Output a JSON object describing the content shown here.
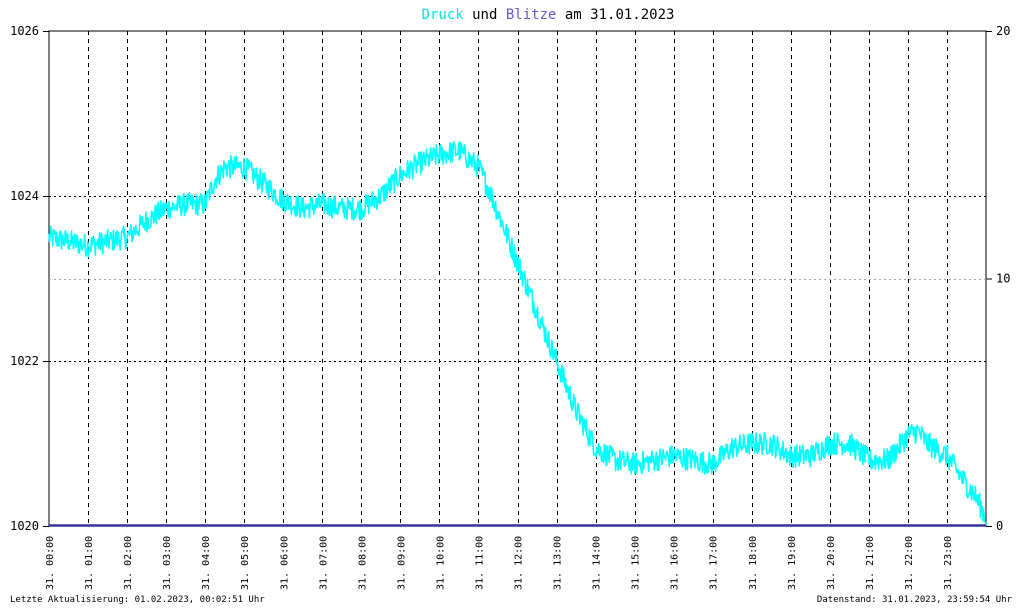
{
  "title": {
    "part1": "Druck",
    "part2": " und ",
    "part3": "Blitze",
    "part4": " am 31.01.2023"
  },
  "footer": {
    "left": "Letzte Aktualisierung: 01.02.2023, 00:02:51 Uhr",
    "right": "Datenstand: 31.01.2023, 23:59:54 Uhr"
  },
  "colors": {
    "pressure": "#00ffff",
    "lightning": "#333399",
    "grid": "#000000",
    "title_druck": "#00e5e5",
    "title_blitze": "#6a5acd",
    "background": "#ffffff"
  },
  "chart_data": {
    "type": "line",
    "x_ticks": [
      "31. 00:00",
      "31. 01:00",
      "31. 02:00",
      "31. 03:00",
      "31. 04:00",
      "31. 05:00",
      "31. 06:00",
      "31. 07:00",
      "31. 08:00",
      "31. 09:00",
      "31. 10:00",
      "31. 11:00",
      "31. 12:00",
      "31. 13:00",
      "31. 14:00",
      "31. 15:00",
      "31. 16:00",
      "31. 17:00",
      "31. 18:00",
      "31. 19:00",
      "31. 20:00",
      "31. 21:00",
      "31. 22:00",
      "31. 23:00"
    ],
    "xlim_hours": [
      0,
      24
    ],
    "y_left": {
      "ylim": [
        1020,
        1026
      ],
      "ticks": [
        1020,
        1022,
        1024,
        1026
      ]
    },
    "y_right": {
      "ylim": [
        0,
        20
      ],
      "ticks": [
        0,
        10,
        20
      ]
    },
    "series": [
      {
        "name": "Druck",
        "axis": "left",
        "x_hours": [
          0,
          0.5,
          1,
          1.5,
          2,
          2.5,
          3,
          3.5,
          4,
          4.25,
          4.5,
          5,
          5.5,
          6,
          6.5,
          7,
          7.5,
          8,
          8.5,
          9,
          9.5,
          10,
          10.5,
          11,
          11.25,
          11.5,
          12,
          12.5,
          13,
          13.5,
          14,
          14.5,
          15,
          15.5,
          16,
          16.5,
          17,
          17.5,
          18,
          18.5,
          19,
          19.5,
          20,
          20.5,
          21,
          21.5,
          22,
          22.25,
          22.5,
          23,
          23.5,
          23.75,
          24
        ],
        "values": [
          1023.5,
          1023.45,
          1023.4,
          1023.45,
          1023.5,
          1023.7,
          1023.85,
          1023.9,
          1023.9,
          1024.2,
          1024.35,
          1024.35,
          1024.15,
          1023.95,
          1023.85,
          1023.9,
          1023.85,
          1023.85,
          1024.0,
          1024.25,
          1024.4,
          1024.5,
          1024.55,
          1024.35,
          1024.1,
          1023.8,
          1023.2,
          1022.6,
          1022.0,
          1021.4,
          1020.95,
          1020.8,
          1020.75,
          1020.8,
          1020.85,
          1020.8,
          1020.75,
          1020.95,
          1021.0,
          1021.0,
          1020.85,
          1020.85,
          1021.0,
          1021.0,
          1020.8,
          1020.8,
          1021.1,
          1021.15,
          1021.0,
          1020.85,
          1020.5,
          1020.35,
          1020.1
        ]
      },
      {
        "name": "Blitze",
        "axis": "right",
        "x_hours": [
          0,
          24
        ],
        "values": [
          0,
          0
        ]
      }
    ]
  }
}
